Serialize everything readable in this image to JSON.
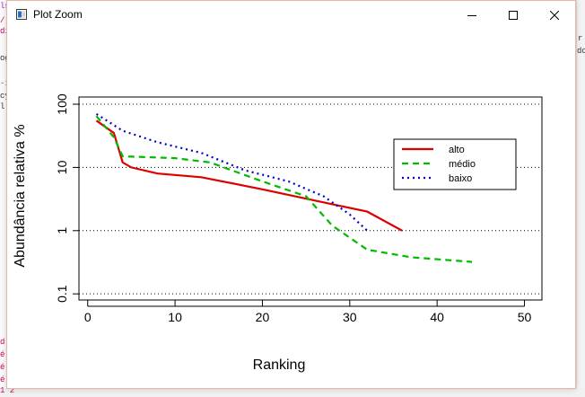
{
  "window": {
    "title": "Plot Zoom"
  },
  "background_fragments": {
    "left": [
      "ls",
      "/",
      "di",
      "og",
      "-1",
      "cy",
      "l",
      "d",
      "é",
      "é",
      "é",
      "é",
      "1 2"
    ],
    "right": [
      "r",
      "do",
      "do"
    ]
  },
  "chart_data": {
    "type": "line",
    "xlabel": "Ranking",
    "ylabel": "Abundância relativa %",
    "xlim": [
      -1,
      52
    ],
    "ylim": [
      0.08,
      130
    ],
    "y_scale": "log",
    "x_ticks": [
      0,
      10,
      20,
      30,
      40,
      50
    ],
    "x_tick_labels": [
      "0",
      "10",
      "20",
      "30",
      "40",
      "50"
    ],
    "y_ticks": [
      0.1,
      1,
      10,
      100
    ],
    "y_tick_labels": [
      "0.1",
      "1",
      "10",
      "100"
    ],
    "grid": "horizontal dotted",
    "legend_position": "right",
    "series": [
      {
        "name": "alto",
        "color": "#dd0000",
        "dash": "solid",
        "x": [
          1,
          3,
          4,
          5,
          8,
          13,
          20,
          27,
          32,
          36
        ],
        "y": [
          55,
          35,
          12,
          10,
          8,
          7,
          4.5,
          2.8,
          2.0,
          1.0
        ]
      },
      {
        "name": "médio",
        "color": "#00bb00",
        "dash": "dashed",
        "x": [
          1,
          3,
          4,
          10,
          14,
          20,
          25,
          28,
          32,
          37,
          44
        ],
        "y": [
          65,
          30,
          15,
          14,
          12,
          6,
          3.5,
          1.2,
          0.5,
          0.38,
          0.32
        ]
      },
      {
        "name": "baixo",
        "color": "#0000cc",
        "dash": "dotted",
        "x": [
          1,
          4,
          8,
          13,
          18,
          23,
          27,
          30,
          32
        ],
        "y": [
          70,
          38,
          25,
          17,
          9,
          6,
          3.5,
          1.8,
          1.0
        ]
      }
    ]
  }
}
